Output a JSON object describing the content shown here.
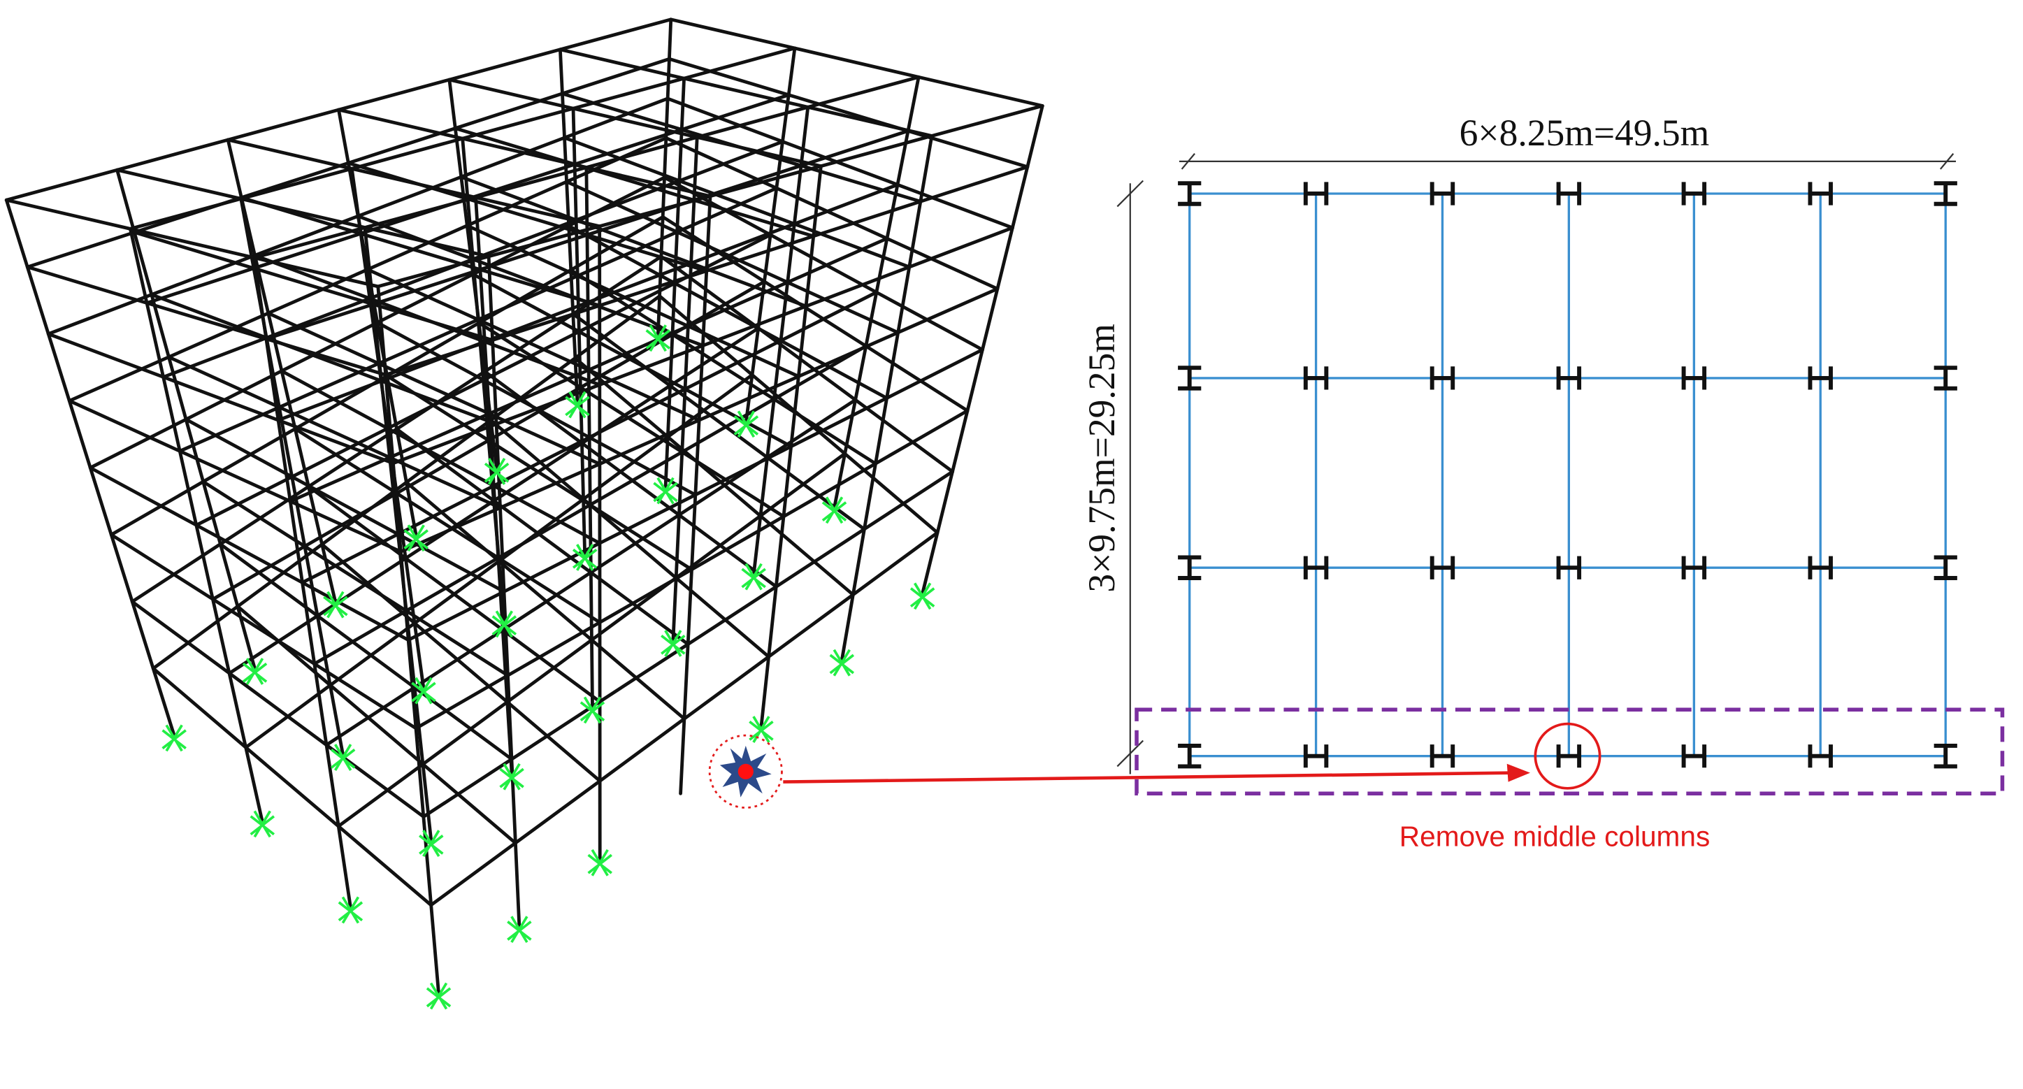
{
  "labels": {
    "width_dimension": "6×8.25m=49.5m",
    "height_dimension": "3×9.75m=29.25m",
    "annotation": "Remove middle columns"
  }
}
